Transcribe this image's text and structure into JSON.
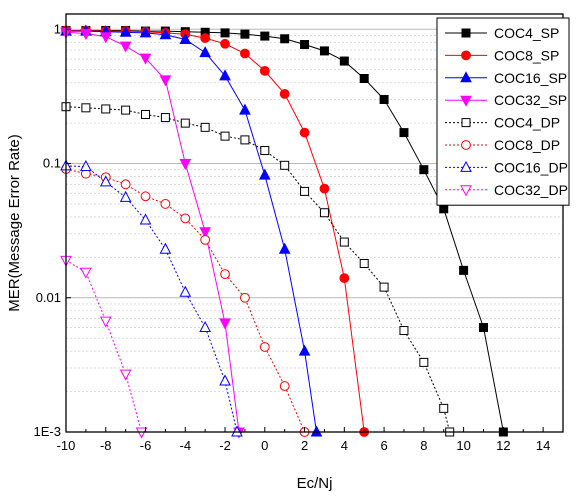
{
  "chart_data": {
    "type": "line",
    "xlabel": "Ec/Nj",
    "ylabel": "MER(Message Error Rate)",
    "xlim": [
      -10,
      15
    ],
    "ylim": [
      0.001,
      1.3
    ],
    "y_scale": "log",
    "grid": "horizontal major and minor gridlines",
    "legend_position": "top-right",
    "x_ticks": [
      -10,
      -8,
      -6,
      -4,
      -2,
      0,
      2,
      4,
      6,
      8,
      10,
      12,
      14
    ],
    "x_tick_labels": [
      "-10",
      "-8",
      "-6",
      "-4",
      "-2",
      "0",
      "2",
      "4",
      "6",
      "8",
      "10",
      "12",
      "14"
    ],
    "y_ticks": [
      0.001,
      0.01,
      0.1,
      1
    ],
    "y_tick_labels": [
      "1E-3",
      "0.01",
      "0.1",
      "1"
    ],
    "series": [
      {
        "name": "COC4_SP",
        "color": "#000000",
        "marker": "square",
        "filled": true,
        "dash": "solid",
        "x": [
          -10,
          -9,
          -8,
          -7,
          -6,
          -5,
          -4,
          -3,
          -2,
          -1,
          0,
          1,
          2,
          3,
          4,
          5,
          6,
          7,
          8,
          9,
          10,
          11,
          12
        ],
        "y": [
          0.98,
          0.98,
          0.98,
          0.98,
          0.97,
          0.97,
          0.96,
          0.95,
          0.94,
          0.92,
          0.89,
          0.85,
          0.77,
          0.69,
          0.58,
          0.43,
          0.3,
          0.17,
          0.09,
          0.046,
          0.016,
          0.006,
          0.001
        ]
      },
      {
        "name": "COC8_SP",
        "color": "#ff0000",
        "marker": "circle",
        "filled": true,
        "dash": "solid",
        "x": [
          -10,
          -9,
          -8,
          -7,
          -6,
          -5,
          -4,
          -3,
          -2,
          -1,
          0,
          1,
          2,
          3,
          4,
          5
        ],
        "y": [
          0.98,
          0.98,
          0.97,
          0.97,
          0.96,
          0.94,
          0.92,
          0.86,
          0.78,
          0.66,
          0.49,
          0.33,
          0.17,
          0.065,
          0.014,
          0.001
        ]
      },
      {
        "name": "COC16_SP",
        "color": "#0000ff",
        "marker": "triangle-up",
        "filled": true,
        "dash": "solid",
        "x": [
          -10,
          -9,
          -8,
          -7,
          -6,
          -5,
          -4,
          -3,
          -2,
          -1,
          0,
          1,
          2,
          2.6
        ],
        "y": [
          0.97,
          0.97,
          0.96,
          0.95,
          0.94,
          0.91,
          0.84,
          0.67,
          0.45,
          0.25,
          0.082,
          0.023,
          0.004,
          0.001
        ]
      },
      {
        "name": "COC32_SP",
        "color": "#ff00ff",
        "marker": "triangle-down",
        "filled": true,
        "dash": "solid",
        "x": [
          -10,
          -9,
          -8,
          -7,
          -6,
          -5,
          -4,
          -3,
          -2,
          -1.3
        ],
        "y": [
          0.95,
          0.93,
          0.88,
          0.75,
          0.61,
          0.42,
          0.1,
          0.031,
          0.0065,
          0.001
        ]
      },
      {
        "name": "COC4_DP",
        "color": "#000000",
        "marker": "square",
        "filled": false,
        "dash": "dotted",
        "x": [
          -10,
          -9,
          -8,
          -7,
          -6,
          -5,
          -4,
          -3,
          -2,
          -1,
          0,
          1,
          2,
          3,
          4,
          5,
          6,
          7,
          8,
          9,
          9.3
        ],
        "y": [
          0.265,
          0.26,
          0.255,
          0.25,
          0.232,
          0.22,
          0.2,
          0.186,
          0.16,
          0.15,
          0.125,
          0.097,
          0.062,
          0.043,
          0.026,
          0.018,
          0.012,
          0.0057,
          0.0033,
          0.0015,
          0.001
        ]
      },
      {
        "name": "COC8_DP",
        "color": "#ff0000",
        "marker": "circle",
        "filled": false,
        "dash": "dotted",
        "x": [
          -10,
          -9,
          -8,
          -7,
          -6,
          -5,
          -4,
          -3,
          -2,
          -1,
          0,
          1,
          2
        ],
        "y": [
          0.091,
          0.084,
          0.079,
          0.07,
          0.057,
          0.05,
          0.039,
          0.027,
          0.015,
          0.01,
          0.0043,
          0.0022,
          0.001
        ]
      },
      {
        "name": "COC16_DP",
        "color": "#0000ff",
        "marker": "triangle-up",
        "filled": false,
        "dash": "dotted",
        "x": [
          -10,
          -9,
          -8,
          -7,
          -6,
          -5,
          -4,
          -3,
          -2,
          -1.4
        ],
        "y": [
          0.096,
          0.095,
          0.073,
          0.056,
          0.038,
          0.023,
          0.011,
          0.006,
          0.0024,
          0.001
        ]
      },
      {
        "name": "COC32_DP",
        "color": "#ff00ff",
        "marker": "triangle-down",
        "filled": false,
        "dash": "dotted",
        "x": [
          -10,
          -9,
          -8,
          -7,
          -6.2
        ],
        "y": [
          0.019,
          0.0155,
          0.0067,
          0.0027,
          0.001
        ]
      }
    ]
  }
}
